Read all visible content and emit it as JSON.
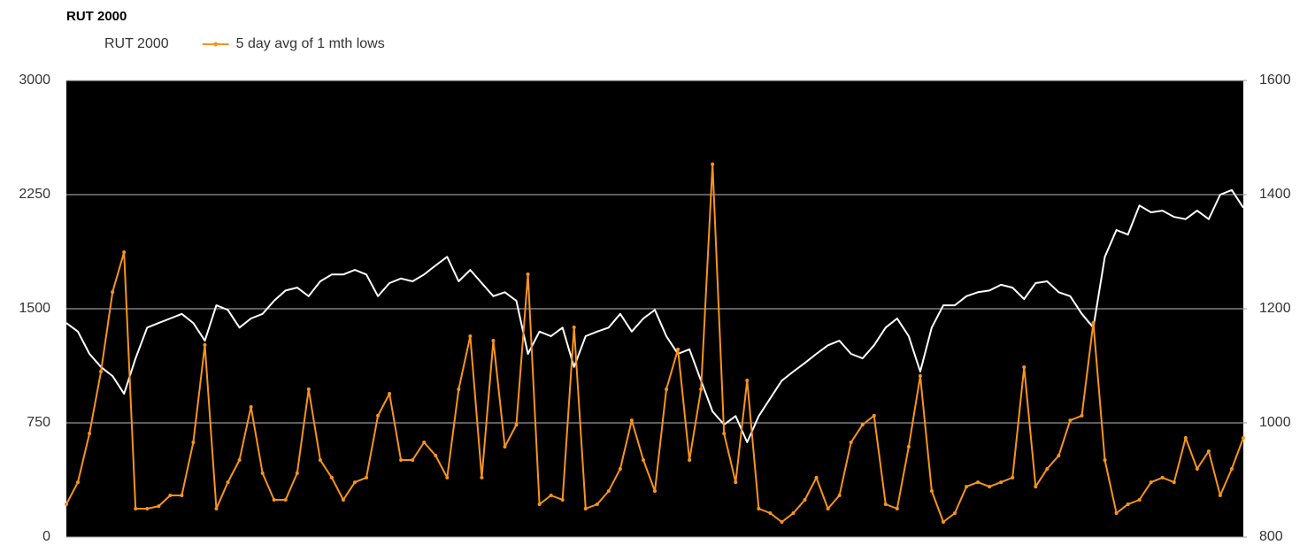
{
  "chart_data": {
    "type": "line",
    "title": "RUT 2000",
    "ylim": [
      0,
      3000
    ],
    "yticks": [
      0,
      750,
      1500,
      2250,
      3000
    ],
    "y2lim": [
      800,
      1600
    ],
    "y2ticks": [
      800,
      1000,
      1200,
      1400,
      1600
    ],
    "grid": true,
    "background": "#000000",
    "legend": "top-left",
    "series": [
      {
        "name": "RUT 2000",
        "color": "#ffffff",
        "axis": "y2",
        "values": [
          1175,
          1160,
          1121,
          1098,
          1082,
          1051,
          1113,
          1167,
          1175,
          1183,
          1191,
          1175,
          1144,
          1206,
          1198,
          1167,
          1183,
          1191,
          1214,
          1232,
          1237,
          1222,
          1248,
          1260,
          1260,
          1268,
          1260,
          1222,
          1245,
          1253,
          1248,
          1260,
          1276,
          1291,
          1248,
          1268,
          1245,
          1222,
          1229,
          1214,
          1121,
          1160,
          1152,
          1167,
          1098,
          1152,
          1160,
          1167,
          1191,
          1160,
          1183,
          1198,
          1152,
          1121,
          1129,
          1074,
          1020,
          997,
          1012,
          966,
          1012,
          1043,
          1074,
          1090,
          1105,
          1121,
          1136,
          1144,
          1121,
          1113,
          1136,
          1167,
          1183,
          1152,
          1090,
          1167,
          1206,
          1206,
          1222,
          1229,
          1232,
          1242,
          1237,
          1217,
          1245,
          1248,
          1229,
          1222,
          1191,
          1167,
          1291,
          1338,
          1330,
          1381,
          1369,
          1372,
          1361,
          1357,
          1372,
          1357,
          1400,
          1408,
          1377
        ]
      },
      {
        "name": "5 day avg of 1 mth lows",
        "color": "#f7941d",
        "values": [
          215,
          360,
          680,
          1087,
          1610,
          1872,
          186,
          186,
          203,
          273,
          273,
          622,
          1262,
          186,
          360,
          506,
          855,
          419,
          244,
          244,
          419,
          971,
          506,
          390,
          244,
          360,
          390,
          797,
          942,
          506,
          506,
          622,
          535,
          390,
          971,
          1320,
          390,
          1291,
          593,
          738,
          1727,
          215,
          273,
          244,
          1378,
          186,
          215,
          302,
          448,
          767,
          506,
          302,
          971,
          1233,
          506,
          971,
          2450,
          680,
          360,
          1029,
          186,
          157,
          99,
          157,
          244,
          390,
          186,
          273,
          622,
          738,
          797,
          215,
          186,
          593,
          1058,
          302,
          99,
          157,
          331,
          360,
          331,
          360,
          390,
          1116,
          331,
          448,
          535,
          767,
          797,
          1407,
          506,
          157,
          215,
          244,
          360,
          390,
          360,
          651,
          448,
          564,
          273,
          448,
          651
        ]
      }
    ]
  }
}
